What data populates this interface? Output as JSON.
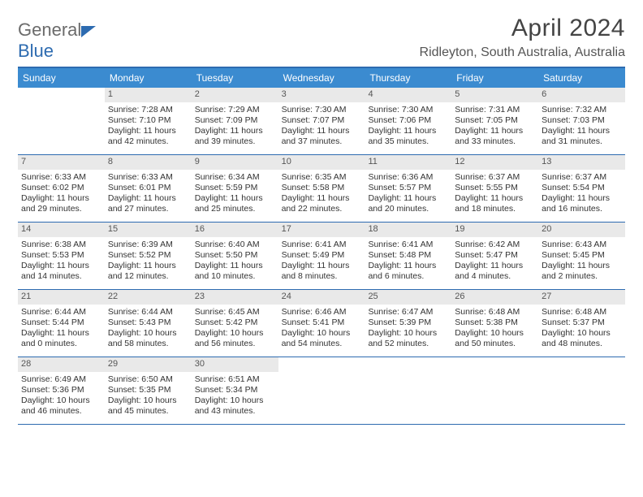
{
  "brand": {
    "part1": "General",
    "part2": "Blue"
  },
  "title": "April 2024",
  "location": "Ridleyton, South Australia, Australia",
  "colors": {
    "header_bar": "#3b8bd0",
    "rule": "#2d6bb0",
    "daynum_bg": "#e9e9e9",
    "text": "#333333"
  },
  "daysOfWeek": [
    "Sunday",
    "Monday",
    "Tuesday",
    "Wednesday",
    "Thursday",
    "Friday",
    "Saturday"
  ],
  "startOffset": 1,
  "daysInMonth": 30,
  "days": [
    {
      "n": 1,
      "sunrise": "7:28 AM",
      "sunset": "7:10 PM",
      "dl_h": 11,
      "dl_m": 42
    },
    {
      "n": 2,
      "sunrise": "7:29 AM",
      "sunset": "7:09 PM",
      "dl_h": 11,
      "dl_m": 39
    },
    {
      "n": 3,
      "sunrise": "7:30 AM",
      "sunset": "7:07 PM",
      "dl_h": 11,
      "dl_m": 37
    },
    {
      "n": 4,
      "sunrise": "7:30 AM",
      "sunset": "7:06 PM",
      "dl_h": 11,
      "dl_m": 35
    },
    {
      "n": 5,
      "sunrise": "7:31 AM",
      "sunset": "7:05 PM",
      "dl_h": 11,
      "dl_m": 33
    },
    {
      "n": 6,
      "sunrise": "7:32 AM",
      "sunset": "7:03 PM",
      "dl_h": 11,
      "dl_m": 31
    },
    {
      "n": 7,
      "sunrise": "6:33 AM",
      "sunset": "6:02 PM",
      "dl_h": 11,
      "dl_m": 29
    },
    {
      "n": 8,
      "sunrise": "6:33 AM",
      "sunset": "6:01 PM",
      "dl_h": 11,
      "dl_m": 27
    },
    {
      "n": 9,
      "sunrise": "6:34 AM",
      "sunset": "5:59 PM",
      "dl_h": 11,
      "dl_m": 25
    },
    {
      "n": 10,
      "sunrise": "6:35 AM",
      "sunset": "5:58 PM",
      "dl_h": 11,
      "dl_m": 22
    },
    {
      "n": 11,
      "sunrise": "6:36 AM",
      "sunset": "5:57 PM",
      "dl_h": 11,
      "dl_m": 20
    },
    {
      "n": 12,
      "sunrise": "6:37 AM",
      "sunset": "5:55 PM",
      "dl_h": 11,
      "dl_m": 18
    },
    {
      "n": 13,
      "sunrise": "6:37 AM",
      "sunset": "5:54 PM",
      "dl_h": 11,
      "dl_m": 16
    },
    {
      "n": 14,
      "sunrise": "6:38 AM",
      "sunset": "5:53 PM",
      "dl_h": 11,
      "dl_m": 14
    },
    {
      "n": 15,
      "sunrise": "6:39 AM",
      "sunset": "5:52 PM",
      "dl_h": 11,
      "dl_m": 12
    },
    {
      "n": 16,
      "sunrise": "6:40 AM",
      "sunset": "5:50 PM",
      "dl_h": 11,
      "dl_m": 10
    },
    {
      "n": 17,
      "sunrise": "6:41 AM",
      "sunset": "5:49 PM",
      "dl_h": 11,
      "dl_m": 8
    },
    {
      "n": 18,
      "sunrise": "6:41 AM",
      "sunset": "5:48 PM",
      "dl_h": 11,
      "dl_m": 6
    },
    {
      "n": 19,
      "sunrise": "6:42 AM",
      "sunset": "5:47 PM",
      "dl_h": 11,
      "dl_m": 4
    },
    {
      "n": 20,
      "sunrise": "6:43 AM",
      "sunset": "5:45 PM",
      "dl_h": 11,
      "dl_m": 2
    },
    {
      "n": 21,
      "sunrise": "6:44 AM",
      "sunset": "5:44 PM",
      "dl_h": 11,
      "dl_m": 0
    },
    {
      "n": 22,
      "sunrise": "6:44 AM",
      "sunset": "5:43 PM",
      "dl_h": 10,
      "dl_m": 58
    },
    {
      "n": 23,
      "sunrise": "6:45 AM",
      "sunset": "5:42 PM",
      "dl_h": 10,
      "dl_m": 56
    },
    {
      "n": 24,
      "sunrise": "6:46 AM",
      "sunset": "5:41 PM",
      "dl_h": 10,
      "dl_m": 54
    },
    {
      "n": 25,
      "sunrise": "6:47 AM",
      "sunset": "5:39 PM",
      "dl_h": 10,
      "dl_m": 52
    },
    {
      "n": 26,
      "sunrise": "6:48 AM",
      "sunset": "5:38 PM",
      "dl_h": 10,
      "dl_m": 50
    },
    {
      "n": 27,
      "sunrise": "6:48 AM",
      "sunset": "5:37 PM",
      "dl_h": 10,
      "dl_m": 48
    },
    {
      "n": 28,
      "sunrise": "6:49 AM",
      "sunset": "5:36 PM",
      "dl_h": 10,
      "dl_m": 46
    },
    {
      "n": 29,
      "sunrise": "6:50 AM",
      "sunset": "5:35 PM",
      "dl_h": 10,
      "dl_m": 45
    },
    {
      "n": 30,
      "sunrise": "6:51 AM",
      "sunset": "5:34 PM",
      "dl_h": 10,
      "dl_m": 43
    }
  ],
  "labels": {
    "sunrise": "Sunrise:",
    "sunset": "Sunset:",
    "daylight_prefix": "Daylight:",
    "hours_word": "hours",
    "and_word": "and",
    "minutes_word": "minutes."
  }
}
